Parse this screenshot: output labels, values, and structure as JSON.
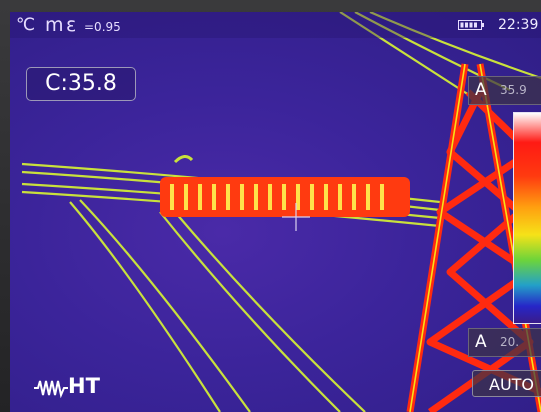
{
  "status_bar": {
    "unit": "℃",
    "mode": "m",
    "emissivity_symbol": "ε",
    "emissivity_value": "=0.95",
    "battery_icon": "battery-icon",
    "time": "22:39"
  },
  "center_measure": {
    "text": "C:35.8"
  },
  "spot_panel": {
    "letter": "A",
    "value": "35.9"
  },
  "color_scale": {
    "palette": "iron",
    "colors": [
      "#ffffff",
      "#ff1a14",
      "#ffa010",
      "#f6e218",
      "#6dd43a",
      "#23a0c8",
      "#2626c8",
      "#3a1c8a"
    ]
  },
  "range_panel": {
    "letter": "A",
    "value": "20."
  },
  "auto_button": {
    "label": "AUTO"
  },
  "brand": {
    "text": "HT",
    "icon": "waveform-icon"
  }
}
